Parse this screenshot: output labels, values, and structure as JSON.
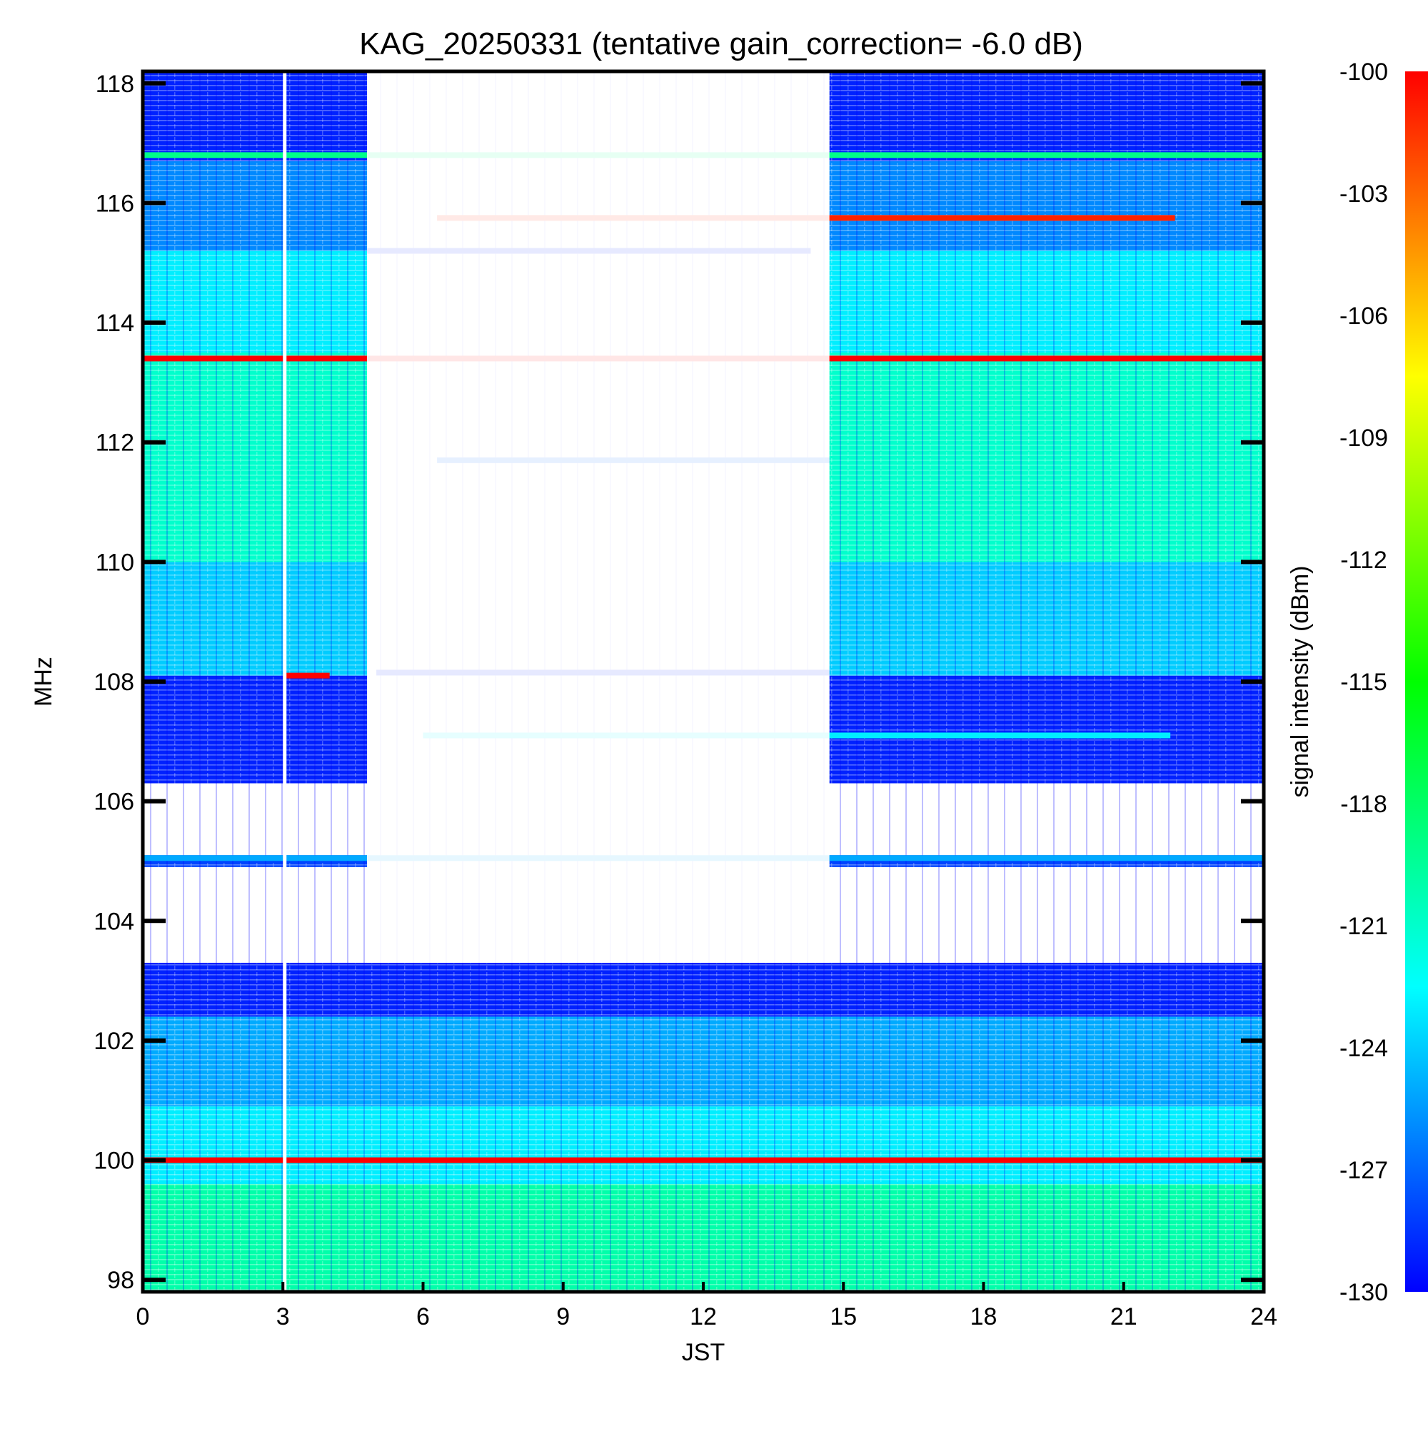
{
  "chart_data": {
    "type": "heatmap",
    "title": "KAG_20250331 (tentative gain_correction= -6.0 dB)",
    "xlabel": "JST",
    "ylabel": "MHz",
    "colorbar_label": "signal intensity (dBm)",
    "xlim": [
      0,
      24
    ],
    "ylim": [
      97.8,
      118.2
    ],
    "clim": [
      -130,
      -100
    ],
    "x_ticks": [
      0,
      3,
      6,
      9,
      12,
      15,
      18,
      21,
      24
    ],
    "x_tick_labels": [
      "0",
      "3",
      "6",
      "9",
      "12",
      "15",
      "18",
      "21",
      "24"
    ],
    "y_ticks": [
      98,
      100,
      102,
      104,
      106,
      108,
      110,
      112,
      114,
      116,
      118
    ],
    "y_tick_labels": [
      "98",
      "100",
      "102",
      "104",
      "106",
      "108",
      "110",
      "112",
      "114",
      "116",
      "118"
    ],
    "colorbar_ticks": [
      -100,
      -103,
      -106,
      -109,
      -112,
      -115,
      -118,
      -121,
      -124,
      -127,
      -130
    ],
    "colorbar_tick_labels": [
      "-100",
      "-103",
      "-106",
      "-109",
      "-112",
      "-115",
      "-118",
      "-121",
      "-124",
      "-127",
      "-130"
    ],
    "colormap": [
      "#0000ff",
      "#0080ff",
      "#00ffff",
      "#00ff80",
      "#00ff00",
      "#80ff00",
      "#ffff00",
      "#ff8000",
      "#ff0000"
    ],
    "gap_periods_jst": [
      [
        4.8,
        14.7
      ]
    ],
    "regions": [
      {
        "t": [
          0,
          24
        ],
        "f": [
          97.8,
          99.6
        ],
        "dbm": -120
      },
      {
        "t": [
          0,
          24
        ],
        "f": [
          99.6,
          100.9
        ],
        "dbm": -123
      },
      {
        "t": [
          0,
          24
        ],
        "f": [
          100.9,
          102.4
        ],
        "dbm": -125
      },
      {
        "t": [
          0,
          24
        ],
        "f": [
          102.4,
          103.3
        ],
        "dbm": -129
      },
      {
        "t": [
          0,
          4.8
        ],
        "f": [
          104.9,
          105.1
        ],
        "dbm": -128
      },
      {
        "t": [
          14.7,
          24
        ],
        "f": [
          104.9,
          105.1
        ],
        "dbm": -128
      },
      {
        "t": [
          0,
          4.8
        ],
        "f": [
          106.3,
          108.1
        ],
        "dbm": -129
      },
      {
        "t": [
          14.7,
          24
        ],
        "f": [
          106.3,
          108.1
        ],
        "dbm": -129
      },
      {
        "t": [
          0,
          4.8
        ],
        "f": [
          108.1,
          110.0
        ],
        "dbm": -124
      },
      {
        "t": [
          14.7,
          24
        ],
        "f": [
          108.1,
          110.0
        ],
        "dbm": -124
      },
      {
        "t": [
          0,
          4.8
        ],
        "f": [
          110.0,
          113.5
        ],
        "dbm": -121
      },
      {
        "t": [
          14.7,
          24
        ],
        "f": [
          110.0,
          113.5
        ],
        "dbm": -121
      },
      {
        "t": [
          0,
          4.8
        ],
        "f": [
          113.5,
          115.2
        ],
        "dbm": -123
      },
      {
        "t": [
          14.7,
          24
        ],
        "f": [
          113.5,
          115.2
        ],
        "dbm": -123
      },
      {
        "t": [
          0,
          4.8
        ],
        "f": [
          115.2,
          116.7
        ],
        "dbm": -126
      },
      {
        "t": [
          14.7,
          24
        ],
        "f": [
          115.2,
          116.7
        ],
        "dbm": -126
      },
      {
        "t": [
          0,
          4.8
        ],
        "f": [
          116.7,
          118.2
        ],
        "dbm": -129
      },
      {
        "t": [
          14.7,
          24
        ],
        "f": [
          116.7,
          118.2
        ],
        "dbm": -129
      }
    ],
    "signal_lines": [
      {
        "name": "100.0 MHz",
        "f": 100.0,
        "t": [
          0,
          24
        ],
        "dbm": -100
      },
      {
        "name": "113.4 MHz",
        "f": 113.4,
        "t": [
          0,
          24
        ],
        "dbm": -100
      },
      {
        "name": "115.75 MHz",
        "f": 115.75,
        "t": [
          6.3,
          22.1
        ],
        "dbm": -101
      },
      {
        "name": "116.8 MHz",
        "f": 116.8,
        "t": [
          0,
          24
        ],
        "dbm": -119
      },
      {
        "name": "107.1 MHz",
        "f": 107.1,
        "t": [
          6.0,
          22.0
        ],
        "dbm": -123
      },
      {
        "name": "105.05 MHz",
        "f": 105.05,
        "t": [
          0,
          24
        ],
        "dbm": -125
      },
      {
        "name": "108.1 MHz",
        "f": 108.1,
        "t": [
          3.0,
          4.0
        ],
        "dbm": -100
      },
      {
        "name": "115.2 MHz",
        "f": 115.2,
        "t": [
          4.8,
          14.3
        ],
        "dbm": -129
      },
      {
        "name": "111.7 MHz",
        "f": 111.7,
        "t": [
          6.3,
          14.7
        ],
        "dbm": -127
      },
      {
        "name": "108.15 MHz",
        "f": 108.15,
        "t": [
          5.0,
          14.7
        ],
        "dbm": -129
      }
    ]
  }
}
